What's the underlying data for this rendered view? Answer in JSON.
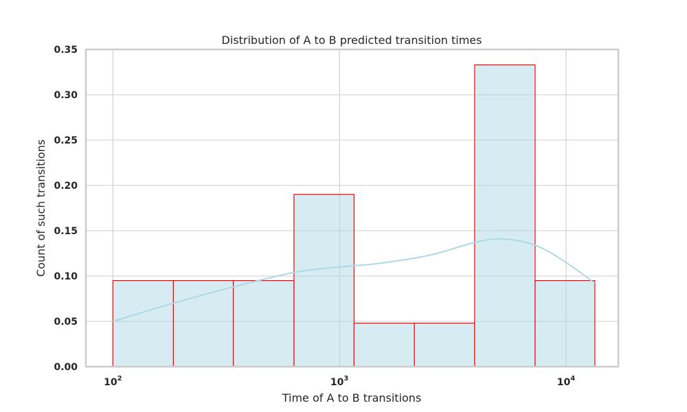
{
  "chart_data": {
    "type": "bar",
    "title": "Distribution of A to B predicted transition times",
    "xlabel": "Time of A to B transitions",
    "ylabel": "Count of such transitions",
    "x_scale": "log",
    "xlim": [
      76,
      17000
    ],
    "ylim": [
      0,
      0.35
    ],
    "grid": true,
    "y_ticks": [
      "0.00",
      "0.05",
      "0.10",
      "0.15",
      "0.20",
      "0.25",
      "0.30",
      "0.35"
    ],
    "x_ticks": [
      {
        "value": 100,
        "base": "10",
        "exp": "2"
      },
      {
        "value": 1000,
        "base": "10",
        "exp": "3"
      },
      {
        "value": 10000,
        "base": "10",
        "exp": "4"
      }
    ],
    "bins": [
      {
        "x0": 100,
        "x1": 185,
        "value": 0.095
      },
      {
        "x0": 185,
        "x1": 340,
        "value": 0.095
      },
      {
        "x0": 340,
        "x1": 630,
        "value": 0.095
      },
      {
        "x0": 630,
        "x1": 1160,
        "value": 0.19
      },
      {
        "x0": 1160,
        "x1": 2140,
        "value": 0.048
      },
      {
        "x0": 2140,
        "x1": 3950,
        "value": 0.048
      },
      {
        "x0": 3950,
        "x1": 7300,
        "value": 0.333
      },
      {
        "x0": 7300,
        "x1": 13400,
        "value": 0.095
      }
    ],
    "kde": {
      "x": [
        100,
        185,
        340,
        630,
        1000,
        1500,
        2500,
        3950,
        5200,
        7300,
        10000,
        13400
      ],
      "y": [
        0.05,
        0.07,
        0.088,
        0.104,
        0.11,
        0.114,
        0.123,
        0.137,
        0.141,
        0.134,
        0.115,
        0.092
      ]
    },
    "colors": {
      "bar_fill": "#add8e6",
      "bar_edge": "#ff0000",
      "kde": "#add8e6",
      "grid": "#cccccc"
    }
  }
}
